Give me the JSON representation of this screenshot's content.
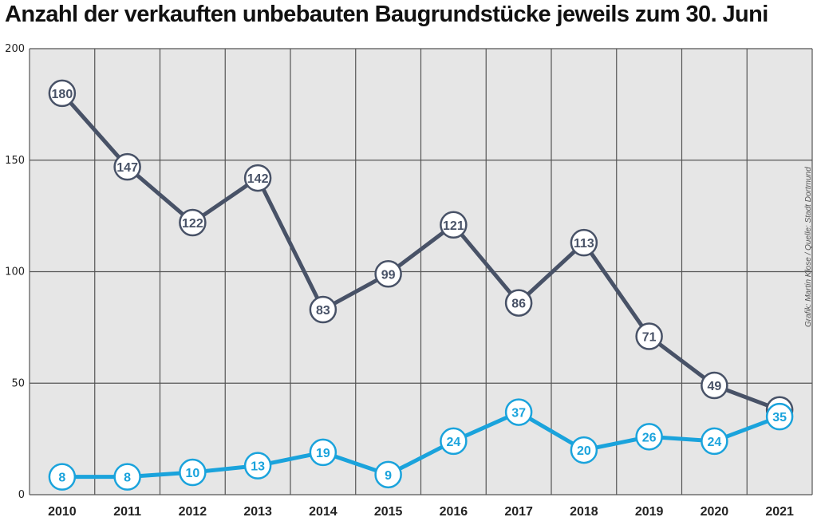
{
  "colors": {
    "dark_series": "#485267",
    "light_series": "#1aa3dc",
    "grid_bg": "#e6e6e6",
    "grid_line": "#555555"
  },
  "chart_data": {
    "type": "line",
    "title": "Anzahl der verkauften unbebauten Baugrundstücke jeweils zum 30. Juni",
    "xlabel": "",
    "ylabel": "",
    "ylim": [
      0,
      200
    ],
    "yticks": [
      "0",
      "50",
      "100",
      "150",
      "200"
    ],
    "categories": [
      "2010",
      "2011",
      "2012",
      "2013",
      "2014",
      "2015",
      "2016",
      "2017",
      "2018",
      "2019",
      "2020",
      "2021"
    ],
    "series": [
      {
        "name": "dark",
        "color": "#485267",
        "values": [
          180,
          147,
          122,
          142,
          83,
          99,
          121,
          86,
          113,
          71,
          49,
          38
        ]
      },
      {
        "name": "light",
        "color": "#1aa3dc",
        "values": [
          8,
          8,
          10,
          13,
          19,
          9,
          24,
          37,
          20,
          26,
          24,
          35
        ]
      }
    ],
    "credit": "Grafik: Martin Klose / Quelle: Stadt Dortmund"
  }
}
